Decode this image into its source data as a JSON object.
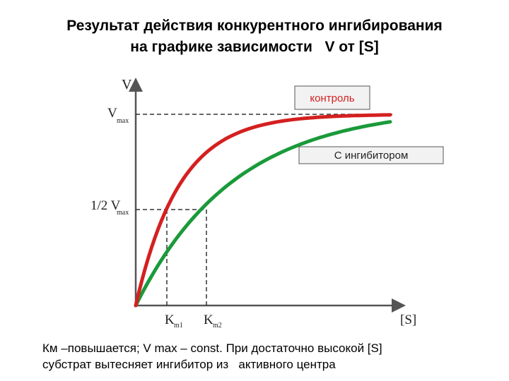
{
  "title": {
    "line1": "Результат действия конкурентного ингибирования",
    "line2": "на графике зависимости   V от [S]"
  },
  "axes": {
    "y_label": "V",
    "x_label": "[S]",
    "vmax_label": "V",
    "vmax_sub": "max",
    "half_vmax_label": "1/2 V",
    "half_vmax_sub": "max",
    "km1_label": "K",
    "km1_sub": "m1",
    "km2_label": "K",
    "km2_sub": "m2"
  },
  "legend": {
    "control": "контроль",
    "inhibitor": "С ингибитором"
  },
  "colors": {
    "control_curve": "#d42020",
    "inhibitor_curve": "#1a9a3a",
    "legend_text_control": "#d42020"
  },
  "caption": {
    "line1": "Км –повышается; V max – const. При достаточно высокой [S]",
    "line2": "субстрат вытесняет ингибитор из   активного центра"
  }
}
